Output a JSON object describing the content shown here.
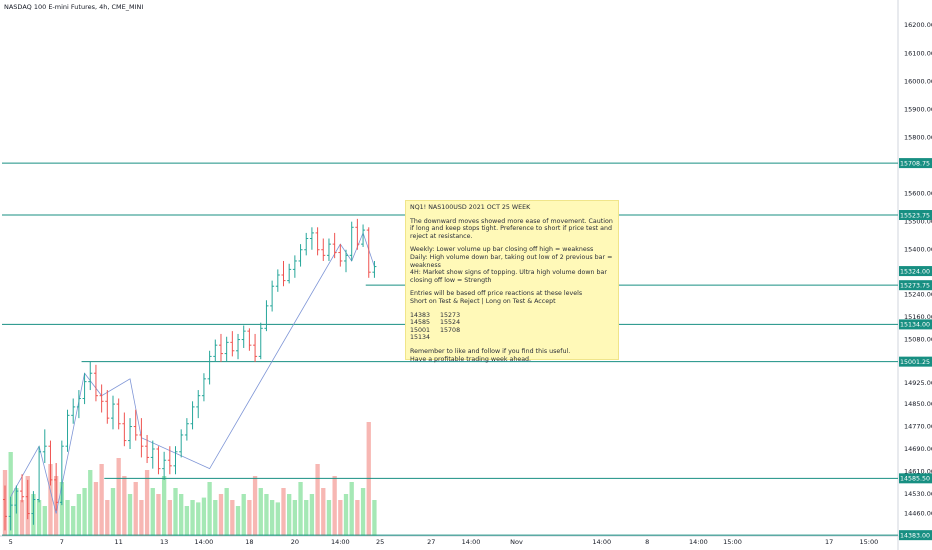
{
  "chart_title": "NASDAQ 100 E-mini Futures, 4h, CME_MINI",
  "colors": {
    "up": "#26a69a",
    "down": "#ef5350",
    "vol_up": "#a5e8b5",
    "vol_down": "#f7b7b3",
    "level_line": "#178f82",
    "level_label_bg": "#178f82",
    "wave": "#7e95d6",
    "note_bg": "#fff9b8"
  },
  "note": {
    "title": "NQ1! NAS100USD 2021 OCT 25 WEEK",
    "para1": "The downward moves showed more ease of movement. Caution if long and keep stops tight. Preference to short if price test and reject at resistance.",
    "weekly": "Weekly: Lower volume up bar closing off high = weakness",
    "daily": "Daily: High volume down bar, taking out low of 2 previous bar = weakness",
    "h4": "4H: Market show signs of topping. Ultra high volume down bar closing off low = Strength",
    "entries1": "Entries will be based off price reactions at these levels",
    "entries2": "Short on Test & Reject  |  Long on Test & Accept",
    "levels_rows": [
      "14383     15273",
      "14585     15524",
      "15001     15708",
      "15134"
    ],
    "footer1": "Remember to like and follow if you find this useful.",
    "footer2": "Have a profitable trading week ahead."
  },
  "chart_data": {
    "type": "bar",
    "title": "NASDAQ 100 E-mini Futures, 4h, CME_MINI",
    "ylim": [
      14380,
      16240
    ],
    "y_ticks": [
      16200,
      16100,
      16000,
      15900,
      15800,
      15600,
      15500,
      15400,
      15240,
      15160,
      15080,
      14925,
      14850,
      14770,
      14690,
      14610,
      14530,
      14460
    ],
    "x_ticks": [
      "5",
      "7",
      "11",
      "13",
      "14:00",
      "18",
      "20",
      "14:00",
      "25",
      "27",
      "14:00",
      "Nov",
      "14:00",
      "8",
      "14:00",
      "15:00",
      "17",
      "15:00"
    ],
    "x_tick_index": [
      1,
      10,
      20,
      28,
      35,
      43,
      51,
      59,
      66,
      75,
      82,
      90,
      105,
      113,
      122,
      128,
      145,
      152
    ],
    "n_slots": 158,
    "levels": [
      {
        "value": 15708.75,
        "label": "15708.75",
        "start": 0
      },
      {
        "value": 15523.75,
        "label": "15523.75",
        "start": 0
      },
      {
        "value": 15324.0,
        "label": "15324.00",
        "start": 66,
        "no_line": true
      },
      {
        "value": 15273.75,
        "label": "15273.75",
        "start": 64
      },
      {
        "value": 15134.0,
        "label": "15134.00",
        "start": 0
      },
      {
        "value": 15001.25,
        "label": "15001.25",
        "start": 14
      },
      {
        "value": 14585.5,
        "label": "14585.50",
        "start": 18
      },
      {
        "value": 14383.0,
        "label": "14383.00",
        "start": 0
      }
    ],
    "ohlc": [
      [
        14510,
        14560,
        14400,
        14450
      ],
      [
        14450,
        14520,
        14400,
        14490
      ],
      [
        14490,
        14560,
        14460,
        14540
      ],
      [
        14540,
        14600,
        14500,
        14520
      ],
      [
        14520,
        14580,
        14440,
        14460
      ],
      [
        14460,
        14540,
        14420,
        14510
      ],
      [
        14510,
        14700,
        14500,
        14680
      ],
      [
        14680,
        14760,
        14640,
        14700
      ],
      [
        14700,
        14720,
        14560,
        14580
      ],
      [
        14580,
        14640,
        14470,
        14500
      ],
      [
        14500,
        14720,
        14490,
        14700
      ],
      [
        14700,
        14830,
        14680,
        14810
      ],
      [
        14810,
        14870,
        14780,
        14840
      ],
      [
        14840,
        14900,
        14800,
        14870
      ],
      [
        14870,
        14960,
        14850,
        14930
      ],
      [
        14930,
        15000,
        14900,
        14960
      ],
      [
        14960,
        14990,
        14860,
        14880
      ],
      [
        14880,
        14920,
        14820,
        14860
      ],
      [
        14860,
        14900,
        14780,
        14800
      ],
      [
        14800,
        14880,
        14760,
        14850
      ],
      [
        14850,
        14870,
        14760,
        14780
      ],
      [
        14780,
        14820,
        14700,
        14720
      ],
      [
        14720,
        14800,
        14690,
        14770
      ],
      [
        14770,
        14830,
        14720,
        14740
      ],
      [
        14740,
        14800,
        14660,
        14700
      ],
      [
        14700,
        14740,
        14640,
        14660
      ],
      [
        14660,
        14720,
        14620,
        14690
      ],
      [
        14690,
        14700,
        14600,
        14620
      ],
      [
        14620,
        14680,
        14580,
        14650
      ],
      [
        14650,
        14700,
        14600,
        14630
      ],
      [
        14630,
        14700,
        14600,
        14680
      ],
      [
        14680,
        14760,
        14660,
        14740
      ],
      [
        14740,
        14800,
        14720,
        14780
      ],
      [
        14780,
        14860,
        14760,
        14840
      ],
      [
        14840,
        14900,
        14800,
        14880
      ],
      [
        14880,
        14960,
        14860,
        14940
      ],
      [
        14940,
        15040,
        14920,
        15020
      ],
      [
        15020,
        15080,
        15000,
        15060
      ],
      [
        15060,
        15100,
        15000,
        15030
      ],
      [
        15030,
        15090,
        15000,
        15070
      ],
      [
        15070,
        15110,
        15020,
        15040
      ],
      [
        15040,
        15100,
        15010,
        15080
      ],
      [
        15080,
        15130,
        15050,
        15110
      ],
      [
        15110,
        15120,
        15040,
        15060
      ],
      [
        15060,
        15100,
        15000,
        15020
      ],
      [
        15020,
        15140,
        15010,
        15120
      ],
      [
        15120,
        15220,
        15110,
        15200
      ],
      [
        15200,
        15290,
        15180,
        15270
      ],
      [
        15270,
        15330,
        15250,
        15310
      ],
      [
        15310,
        15360,
        15270,
        15290
      ],
      [
        15290,
        15350,
        15280,
        15330
      ],
      [
        15330,
        15380,
        15300,
        15360
      ],
      [
        15360,
        15420,
        15340,
        15400
      ],
      [
        15400,
        15460,
        15380,
        15440
      ],
      [
        15440,
        15480,
        15400,
        15460
      ],
      [
        15460,
        15480,
        15380,
        15400
      ],
      [
        15400,
        15440,
        15360,
        15380
      ],
      [
        15380,
        15440,
        15360,
        15420
      ],
      [
        15420,
        15460,
        15370,
        15390
      ],
      [
        15390,
        15420,
        15340,
        15360
      ],
      [
        15360,
        15400,
        15320,
        15380
      ],
      [
        15380,
        15500,
        15360,
        15480
      ],
      [
        15480,
        15510,
        15400,
        15420
      ],
      [
        15420,
        15490,
        15410,
        15470
      ],
      [
        15470,
        15480,
        15300,
        15320
      ],
      [
        15320,
        15360,
        15300,
        15340
      ]
    ],
    "volume_rel": [
      0.55,
      0.7,
      0.4,
      0.3,
      0.5,
      0.35,
      0.3,
      0.25,
      0.6,
      0.5,
      0.45,
      0.3,
      0.25,
      0.35,
      0.4,
      0.55,
      0.45,
      0.6,
      0.3,
      0.4,
      0.65,
      0.5,
      0.35,
      0.45,
      0.3,
      0.55,
      0.4,
      0.35,
      0.5,
      0.3,
      0.4,
      0.35,
      0.25,
      0.3,
      0.28,
      0.32,
      0.45,
      0.3,
      0.35,
      0.4,
      0.3,
      0.25,
      0.35,
      0.3,
      0.5,
      0.4,
      0.35,
      0.3,
      0.28,
      0.4,
      0.35,
      0.3,
      0.45,
      0.3,
      0.35,
      0.6,
      0.4,
      0.3,
      0.5,
      0.3,
      0.35,
      0.45,
      0.3,
      0.4,
      0.95,
      0.3
    ],
    "wave_points": [
      [
        1,
        14520
      ],
      [
        6,
        14700
      ],
      [
        9,
        14460
      ],
      [
        14,
        14960
      ],
      [
        17,
        14880
      ],
      [
        22,
        14940
      ],
      [
        24,
        14730
      ],
      [
        36,
        14620
      ],
      [
        59,
        15420
      ],
      [
        61,
        15360
      ],
      [
        63,
        15460
      ],
      [
        65,
        15340
      ]
    ],
    "grid": false,
    "legend": "none"
  }
}
